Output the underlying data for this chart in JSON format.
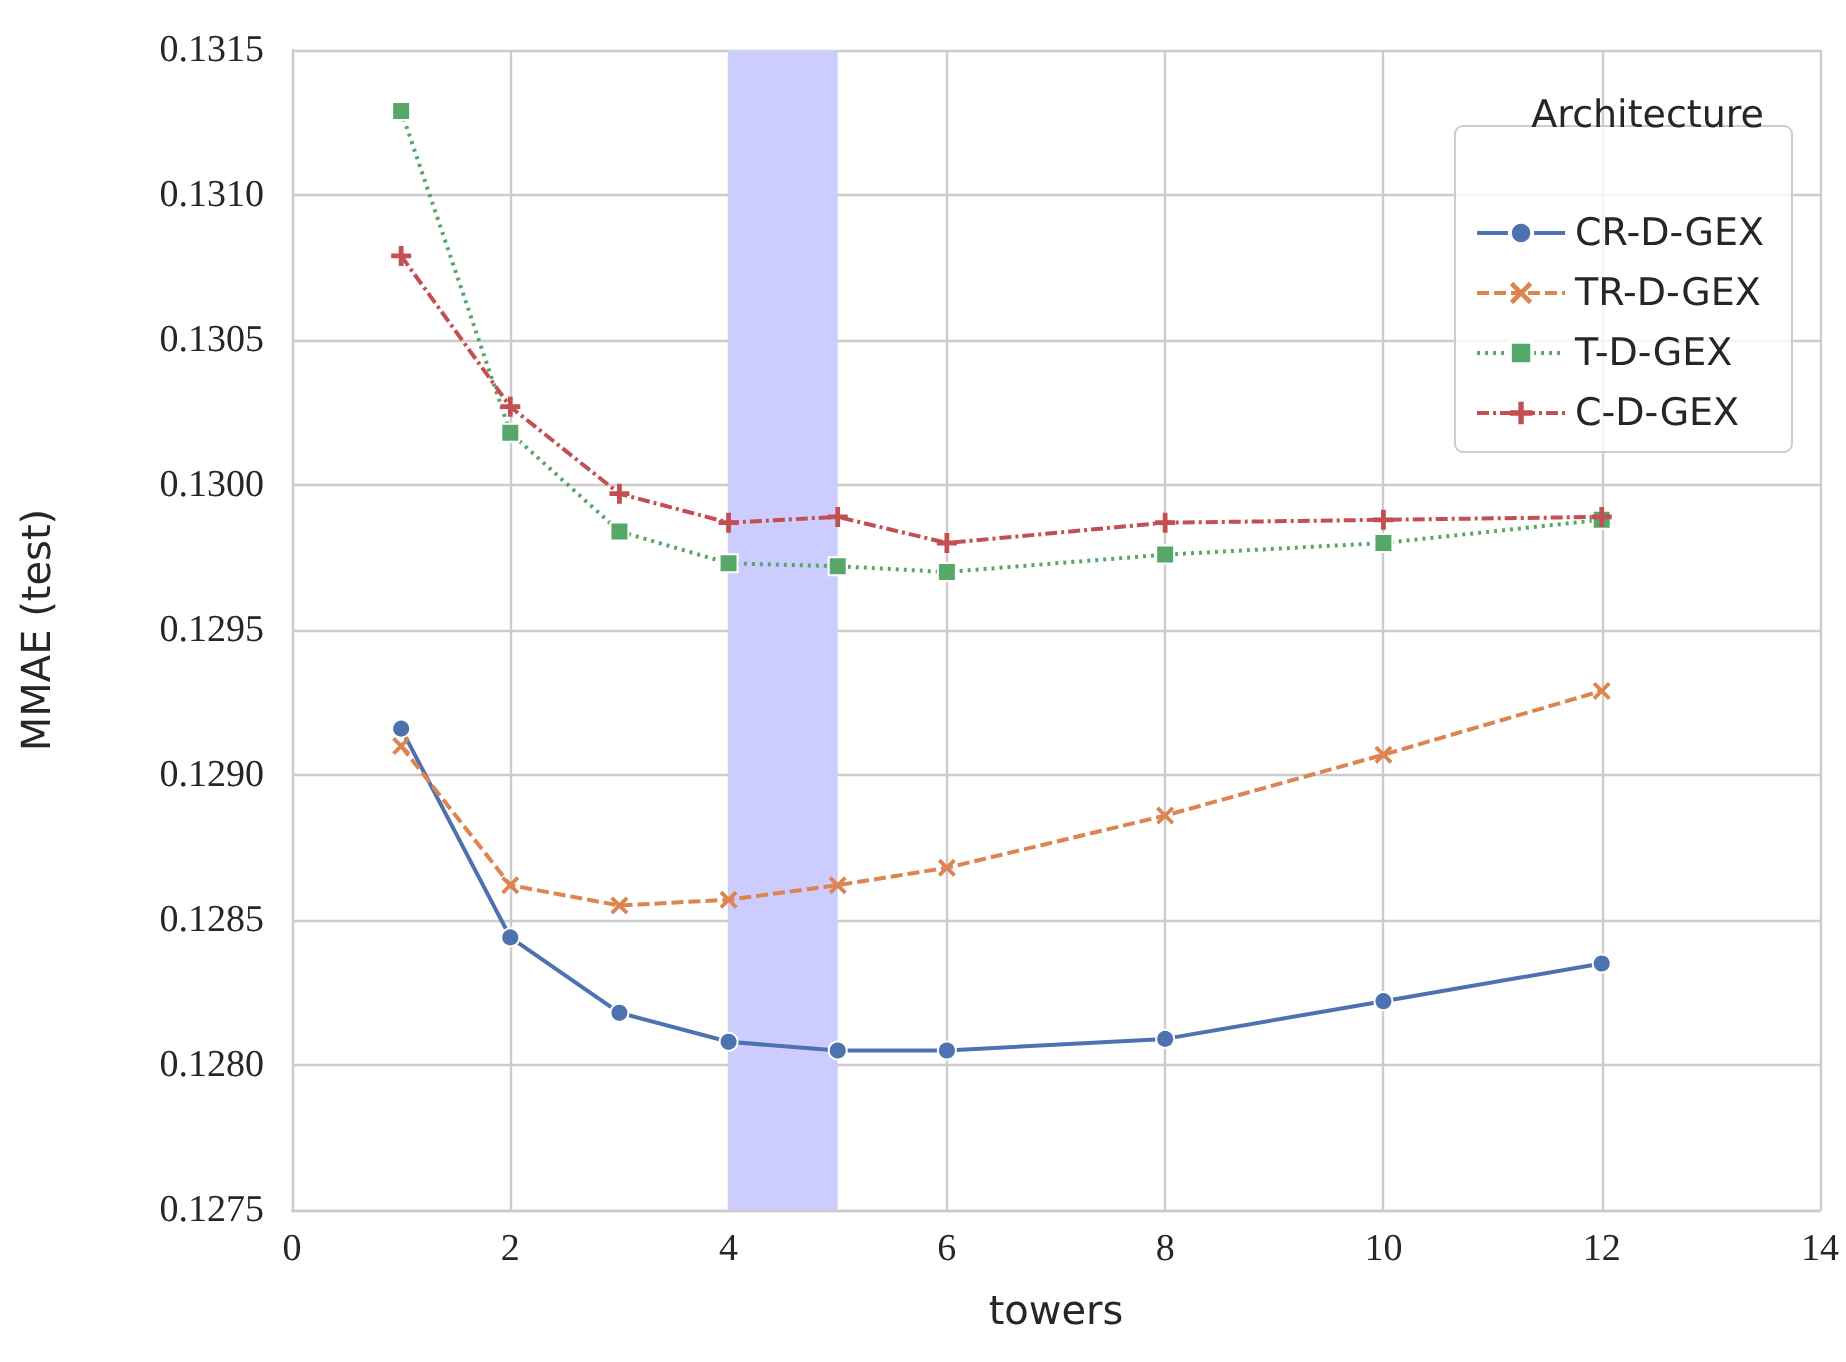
{
  "chart_data": {
    "type": "line",
    "xlabel": "towers",
    "ylabel": "MMAE (test)",
    "legend_title": "Architecture",
    "legend": "top right",
    "grid": true,
    "x": [
      1,
      2,
      3,
      4,
      5,
      6,
      8,
      10,
      12
    ],
    "xlim": [
      0,
      14
    ],
    "xticks": [
      0,
      2,
      4,
      6,
      8,
      10,
      12,
      14
    ],
    "ylim": [
      0.1275,
      0.1315
    ],
    "yticks": [
      0.1275,
      {
        "value": 0.128,
        "label": "0.1280"
      },
      0.1285,
      {
        "value": 0.129,
        "label": "0.1290"
      },
      0.1295,
      {
        "value": 0.13,
        "label": "0.1300"
      },
      0.1305,
      {
        "value": 0.131,
        "label": "0.1310"
      },
      0.1315
    ],
    "bands": [
      {
        "axis": "x",
        "from": 4,
        "to": 5,
        "color": "#ccccff"
      }
    ],
    "series": [
      {
        "name": "CR-D-GEX",
        "color": "#4c72b0",
        "marker": "circle",
        "line_style": "solid",
        "values": [
          0.12916,
          0.12844,
          0.12818,
          0.12808,
          0.12805,
          0.12805,
          0.12809,
          0.12822,
          0.12835
        ]
      },
      {
        "name": "TR-D-GEX",
        "color": "#dd8452",
        "marker": "cross",
        "line_style": "dashed",
        "values": [
          0.1291,
          0.12862,
          0.12855,
          0.12857,
          0.12862,
          0.12868,
          0.12886,
          0.12907,
          0.12929
        ]
      },
      {
        "name": "T-D-GEX",
        "color": "#55a868",
        "marker": "square",
        "line_style": "dotted",
        "values": [
          0.13129,
          0.13018,
          0.12984,
          0.12973,
          0.12972,
          0.1297,
          0.12976,
          0.1298,
          0.12988
        ]
      },
      {
        "name": "C-D-GEX",
        "color": "#c44e52",
        "marker": "plus",
        "line_style": "dashdot",
        "values": [
          0.13079,
          0.13027,
          0.12997,
          0.12987,
          0.12989,
          0.1298,
          0.12987,
          0.12988,
          0.12989
        ]
      }
    ]
  }
}
